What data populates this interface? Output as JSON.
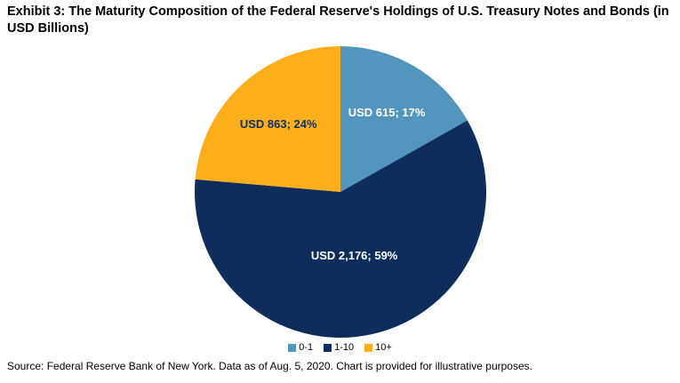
{
  "page": {
    "title": "Exhibit 3: The Maturity Composition of the Federal Reserve's Holdings of U.S. Treasury Notes and Bonds (in USD Billions)",
    "source": "Source: Federal Reserve Bank of New York. Data as of Aug. 5, 2020. Chart is provided for illustrative purposes."
  },
  "chart_data": {
    "type": "pie",
    "title": "Exhibit 3: The Maturity Composition of the Federal Reserve's Holdings of U.S. Treasury Notes and Bonds (in USD Billions)",
    "unit": "USD Billions",
    "start_angle_deg": 0,
    "direction": "clockwise",
    "legend_position": "bottom",
    "legend": [
      "0-1",
      "1-10",
      "10+"
    ],
    "slices": [
      {
        "category": "0-1",
        "value": 615,
        "pct": 17,
        "label": "USD 615; 17%",
        "color": "#5296BE",
        "label_color": "#FFFFFF"
      },
      {
        "category": "1-10",
        "value": 2176,
        "pct": 59,
        "label": "USD 2,176; 59%",
        "color": "#0E2D5C",
        "label_color": "#FFFFFF"
      },
      {
        "category": "10+",
        "value": 863,
        "pct": 24,
        "label": "USD 863; 24%",
        "color": "#FCAF1A",
        "label_color": "#0E2D5C"
      }
    ]
  }
}
